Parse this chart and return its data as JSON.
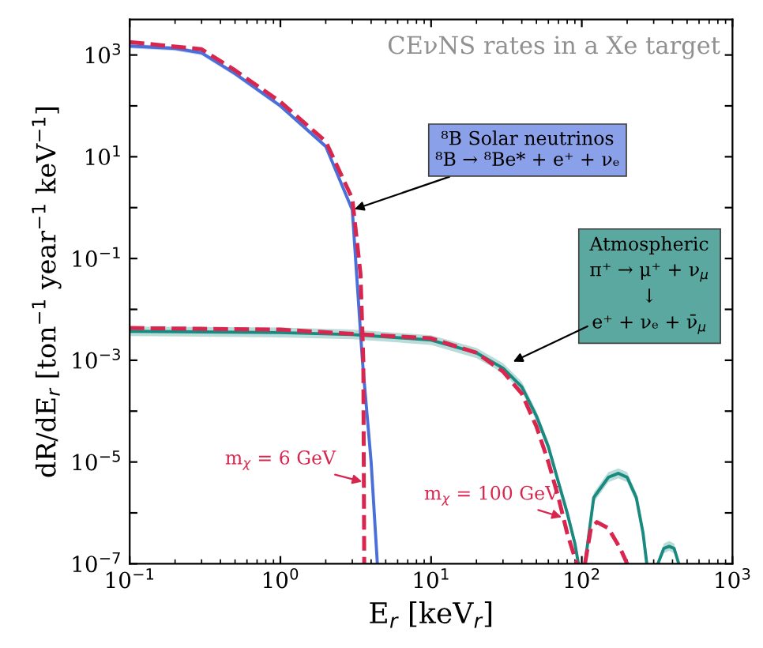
{
  "chart_data": {
    "type": "line",
    "title": "CEνNS rates in a Xe target",
    "xlabel": "E$_{r}$ [keV$_{r}$]",
    "ylabel": "dR/dE$_{r}$ [ton$^{−1}$ year$^{−1}$ keV$^{−1}$]",
    "log": "xy",
    "xlim": [
      0.1,
      1000
    ],
    "ylim": [
      1e-07,
      5000
    ],
    "xticks": [
      {
        "value": 0.1,
        "label": "10$^{−1}$"
      },
      {
        "value": 1,
        "label": "10$^{0}$"
      },
      {
        "value": 10,
        "label": "10$^{1}$"
      },
      {
        "value": 100,
        "label": "10$^{2}$"
      },
      {
        "value": 1000,
        "label": "10$^{3}$"
      }
    ],
    "yticks": [
      {
        "value": 1e-07,
        "label": "10$^{−7}$"
      },
      {
        "value": 1e-06,
        "label": null
      },
      {
        "value": 1e-05,
        "label": "10$^{−5}$"
      },
      {
        "value": 0.0001,
        "label": null
      },
      {
        "value": 0.001,
        "label": "10$^{−3}$"
      },
      {
        "value": 0.01,
        "label": null
      },
      {
        "value": 0.1,
        "label": "10$^{−1}$"
      },
      {
        "value": 1,
        "label": null
      },
      {
        "value": 10,
        "label": "10$^{1}$"
      },
      {
        "value": 100,
        "label": null
      },
      {
        "value": 1000,
        "label": "10$^{3}$"
      }
    ],
    "grid": false,
    "legend": false,
    "line_style": "solid",
    "marker": "none",
    "series": [
      {
        "color": "#4a6fd8",
        "x": [
          0.1,
          0.2,
          0.3,
          0.5,
          1,
          2,
          3,
          3.5,
          4,
          4.4
        ],
        "values": [
          1500,
          1350,
          1100,
          430,
          100,
          16,
          0.9,
          0.001,
          1e-05,
          1e-07
        ],
        "lower": [
          1350,
          1215,
          990,
          387,
          90,
          14.4,
          0.81,
          0.0009,
          9e-06,
          1e-07
        ],
        "upper": [
          1650,
          1485,
          1210,
          473,
          110,
          17.6,
          0.99,
          0.0011,
          1.1e-05,
          1e-07
        ]
      },
      {
        "color": "#1a8a80",
        "x": [
          0.1,
          1,
          3,
          10,
          20,
          30,
          40,
          50,
          60,
          70,
          80,
          90,
          95,
          100,
          105,
          120,
          150,
          175,
          200,
          230,
          255,
          270,
          300,
          320,
          350,
          380,
          410,
          440
        ],
        "values": [
          0.0037,
          0.0035,
          0.0032,
          0.0025,
          0.0014,
          0.0007,
          0.0003,
          8e-05,
          2e-05,
          4e-06,
          1e-06,
          2.5e-07,
          1e-07,
          null,
          1e-07,
          2e-06,
          5e-06,
          6e-06,
          5e-06,
          2e-06,
          4e-07,
          1e-07,
          null,
          1e-07,
          2e-07,
          2.2e-07,
          2e-07,
          1e-07
        ],
        "lower": [
          0.003,
          0.0028,
          0.0026,
          0.002,
          0.0011,
          0.00056,
          0.00024,
          6.4e-05,
          1.6e-05,
          3.2e-06,
          8e-07,
          2e-07,
          1e-07,
          null,
          1e-07,
          1.6e-06,
          4e-06,
          4.8e-06,
          4e-06,
          1.6e-06,
          3e-07,
          1e-07,
          null,
          1e-07,
          1.6e-07,
          1.8e-07,
          1.6e-07,
          1e-07
        ],
        "upper": [
          0.0046,
          0.0044,
          0.004,
          0.0031,
          0.00175,
          0.00088,
          0.00038,
          0.0001,
          2.5e-05,
          5e-06,
          1.25e-06,
          3e-07,
          1e-07,
          null,
          1e-07,
          2.5e-06,
          6.3e-06,
          7.5e-06,
          6.3e-06,
          2.5e-06,
          5e-07,
          1e-07,
          null,
          1e-07,
          2.5e-07,
          2.8e-07,
          2.5e-07,
          1e-07
        ]
      },
      {
        "color": "#d8264e",
        "line_style": "dashed",
        "x": [
          0.1,
          0.3,
          0.5,
          1,
          2,
          3,
          3.4,
          3.55,
          3.6
        ],
        "values": [
          1800,
          1300,
          500,
          120,
          20,
          1.5,
          0.05,
          0.001,
          1e-07
        ]
      },
      {
        "color": "#d8264e",
        "line_style": "dashed",
        "x": [
          0.1,
          1,
          10,
          20,
          30,
          40,
          50,
          60,
          70,
          80,
          90,
          93,
          100,
          105,
          115,
          126,
          150,
          180,
          200
        ],
        "values": [
          0.0043,
          0.004,
          0.0027,
          0.0014,
          0.0006,
          0.00022,
          5e-05,
          1e-05,
          2e-06,
          4e-07,
          1.3e-07,
          1e-07,
          null,
          1e-07,
          5e-07,
          6.6e-07,
          5e-07,
          2e-07,
          1e-07
        ]
      }
    ],
    "annotations": [
      {
        "text": "⁸B Solar neutrinos\n⁸B → ⁸Be* + e⁺ + νₑ",
        "x": 3.0,
        "y": 0.9
      },
      "Atmospheric",
      "π⁺ → μ⁺ + ν$_{μ}$",
      "↓",
      {
        "text": "e⁺ + νₑ + ν̄$_{μ}$",
        "x": 34,
        "y": 0.0009
      },
      {
        "text": "m$_{χ}$ = 6 GeV",
        "x": 3.6,
        "y": 4e-06
      },
      {
        "text": "m$_{χ}$ = 100 GeV",
        "x": 76,
        "y": 8e-07
      }
    ]
  }
}
